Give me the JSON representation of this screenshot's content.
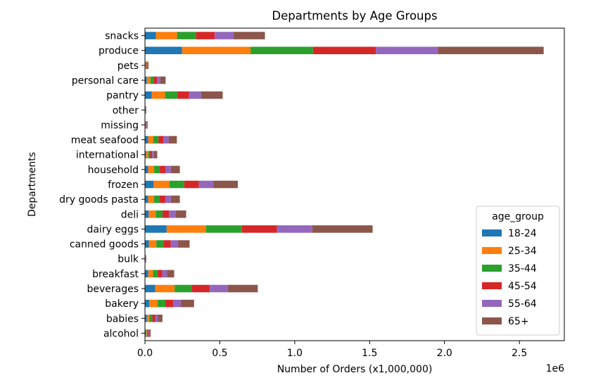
{
  "chart_data": {
    "type": "bar",
    "orientation": "horizontal",
    "stacked": true,
    "title": "Departments by Age Groups",
    "xlabel": "Number of Orders (x1,000,000)",
    "ylabel": "Departments",
    "x_offset_text": "1e6",
    "xlim": [
      0,
      2800000
    ],
    "x_ticks": [
      0,
      500000,
      1000000,
      1500000,
      2000000,
      2500000
    ],
    "x_tick_labels": [
      "0.0",
      "0.5",
      "1.0",
      "1.5",
      "2.0",
      "2.5"
    ],
    "grid": false,
    "legend": {
      "title": "age_group",
      "placement": "lower-right"
    },
    "categories": [
      "alcohol",
      "babies",
      "bakery",
      "beverages",
      "breakfast",
      "bulk",
      "canned goods",
      "dairy eggs",
      "deli",
      "dry goods pasta",
      "frozen",
      "household",
      "international",
      "meat seafood",
      "missing",
      "other",
      "pantry",
      "personal care",
      "pets",
      "produce",
      "snacks"
    ],
    "series": [
      {
        "name": "18-24",
        "color": "#1f77b4",
        "values": [
          5000,
          13000,
          28000,
          68000,
          22000,
          1000,
          26000,
          145000,
          25000,
          21000,
          58000,
          21000,
          8000,
          21000,
          2000,
          1000,
          46000,
          13000,
          2000,
          248000,
          74000
        ]
      },
      {
        "name": "25-34",
        "color": "#ff7f0e",
        "values": [
          6000,
          17000,
          56000,
          130000,
          32000,
          1500,
          50000,
          262000,
          47000,
          40000,
          106000,
          40000,
          14000,
          35000,
          3000,
          1500,
          88000,
          23000,
          4000,
          457000,
          140000
        ]
      },
      {
        "name": "35-44",
        "color": "#2ca02c",
        "values": [
          6000,
          19000,
          52000,
          115000,
          31000,
          1500,
          48000,
          240000,
          45000,
          38000,
          98000,
          38000,
          13000,
          34000,
          3000,
          1500,
          81000,
          23000,
          4000,
          417000,
          127000
        ]
      },
      {
        "name": "45-54",
        "color": "#d62728",
        "values": [
          6000,
          19000,
          52000,
          120000,
          31000,
          1500,
          48000,
          235000,
          44000,
          37000,
          98000,
          37000,
          13000,
          34000,
          3000,
          1500,
          80000,
          22000,
          4000,
          420000,
          125000
        ]
      },
      {
        "name": "55-64",
        "color": "#9467bd",
        "values": [
          6000,
          19000,
          52000,
          120000,
          31000,
          1500,
          48000,
          235000,
          44000,
          37000,
          98000,
          37000,
          13000,
          34000,
          3000,
          1500,
          80000,
          22000,
          4000,
          415000,
          125000
        ]
      },
      {
        "name": "65+",
        "color": "#8c564b",
        "values": [
          9000,
          30000,
          88000,
          200000,
          48000,
          2000,
          78000,
          403000,
          70000,
          60000,
          162000,
          60000,
          21000,
          55000,
          4000,
          2000,
          144000,
          35000,
          6000,
          705000,
          210000
        ]
      }
    ]
  }
}
